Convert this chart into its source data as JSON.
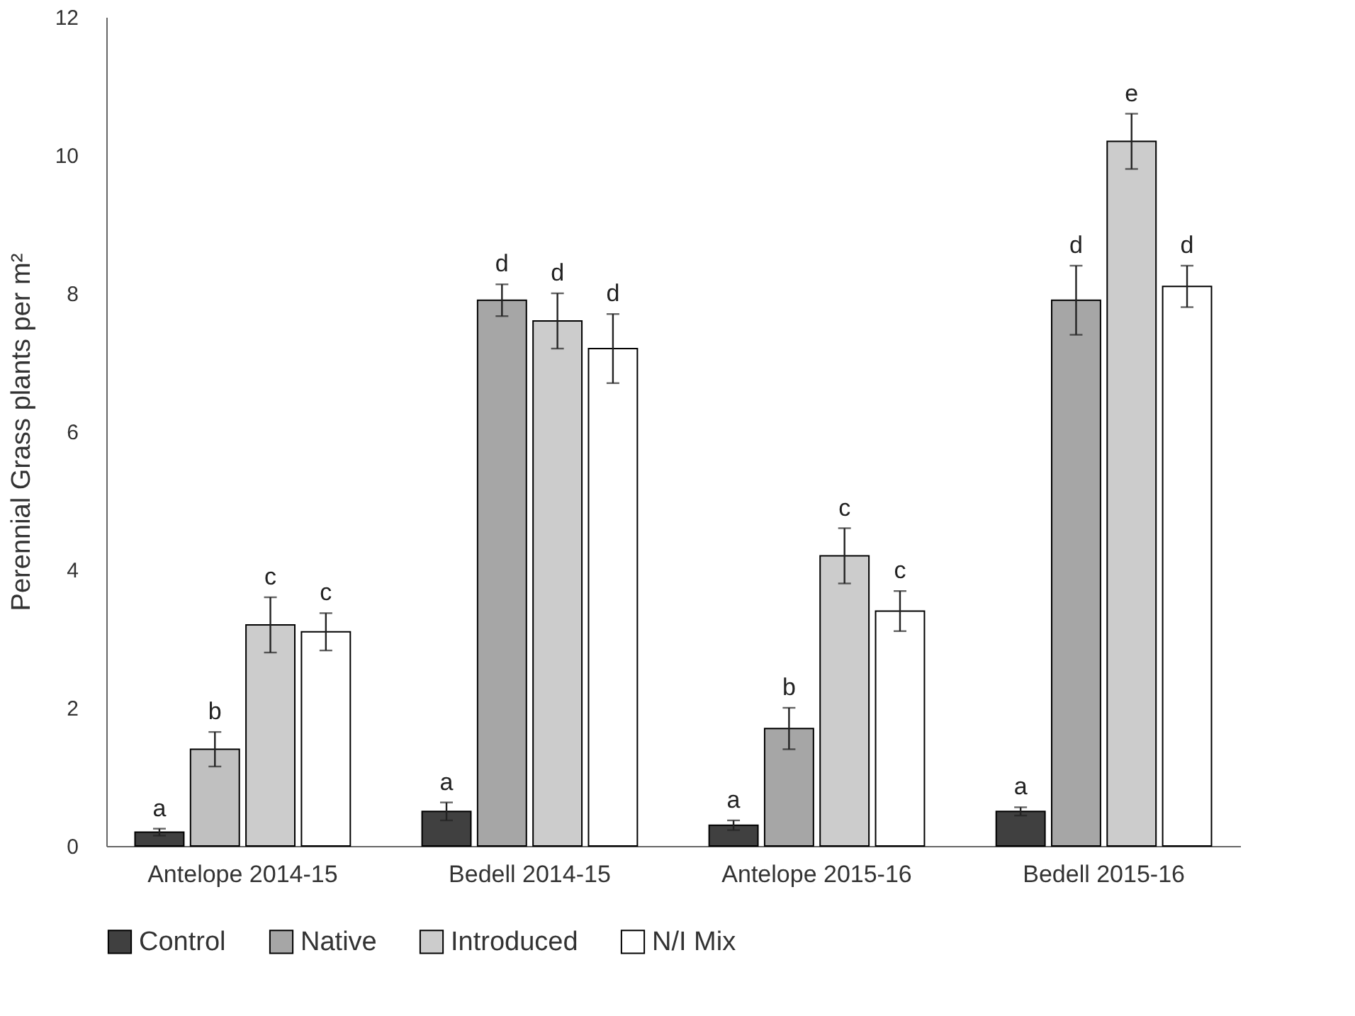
{
  "chart_data": {
    "type": "bar",
    "ylabel": "Perennial Grass plants per m²",
    "categories": [
      "Antelope 2014-15",
      "Bedell 2014-15",
      "Antelope 2015-16",
      "Bedell 2015-16"
    ],
    "series": [
      {
        "name": "Control",
        "color": "#404040",
        "values": [
          0.2,
          0.5,
          0.3,
          0.5
        ],
        "errors": [
          0.05,
          0.13,
          0.07,
          0.06
        ],
        "value_labels": [
          "a",
          "a",
          "a",
          "a"
        ]
      },
      {
        "name": "Native",
        "color": "#a6a6a6",
        "colors": [
          "#c0c0c0",
          "#a6a6a6",
          "#a6a6a6",
          "#a6a6a6"
        ],
        "values": [
          1.4,
          7.9,
          1.7,
          7.9
        ],
        "errors": [
          0.25,
          0.23,
          0.3,
          0.5
        ],
        "value_labels": [
          "b",
          "d",
          "b",
          "d"
        ]
      },
      {
        "name": "Introduced",
        "color": "#cccccc",
        "values": [
          3.2,
          7.6,
          4.2,
          10.2
        ],
        "errors": [
          0.4,
          0.4,
          0.4,
          0.4
        ],
        "value_labels": [
          "c",
          "d",
          "c",
          "e"
        ]
      },
      {
        "name": "N/I Mix",
        "color": "#ffffff",
        "values": [
          3.1,
          7.2,
          3.4,
          8.1
        ],
        "errors": [
          0.27,
          0.5,
          0.29,
          0.3
        ],
        "value_labels": [
          "c",
          "d",
          "c",
          "d"
        ]
      }
    ],
    "ylim": [
      0,
      12
    ],
    "yticks": [
      0,
      2,
      4,
      6,
      8,
      10,
      12
    ],
    "grid": false,
    "legend": "bottom"
  }
}
